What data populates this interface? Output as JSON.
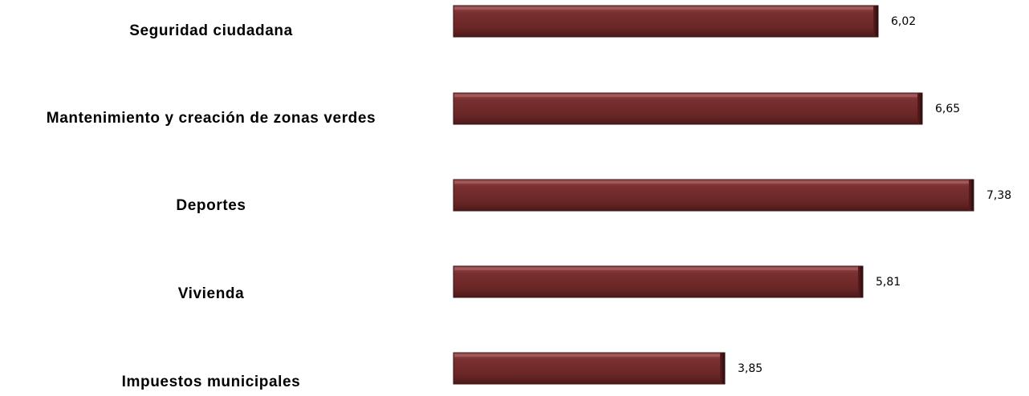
{
  "chart_data": {
    "type": "bar",
    "orientation": "horizontal",
    "categories": [
      "Seguridad ciudadana",
      "Mantenimiento y creación de zonas verdes",
      "Deportes",
      "Vivienda",
      "Impuestos municipales"
    ],
    "values": [
      6.02,
      6.65,
      7.38,
      5.81,
      3.85
    ],
    "value_labels": [
      "6,02",
      "6,65",
      "7,38",
      "5,81",
      "3,85"
    ],
    "title": "",
    "xlabel": "",
    "ylabel": "",
    "xlim": [
      0,
      7.38
    ],
    "grid": false,
    "legend": "none",
    "colors": {
      "bar_fill": "#6f2a2a",
      "bar_highlight": "#b06a6a",
      "bar_shadow": "#4a1717",
      "bar_edge": "#3a1212"
    }
  }
}
